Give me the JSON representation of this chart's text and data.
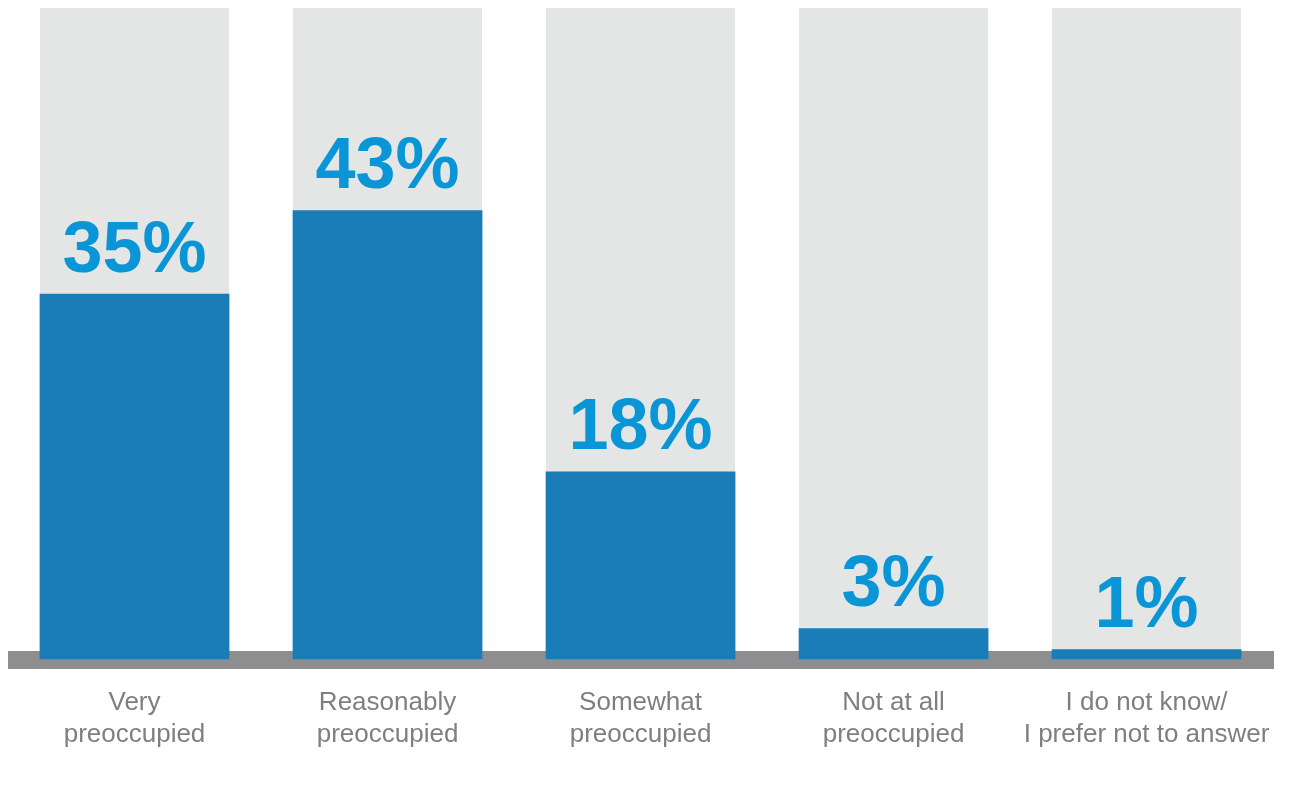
{
  "chart_data": {
    "type": "bar",
    "categories": [
      "Very\npreoccupied",
      "Reasonably\npreoccupied",
      "Somewhat\npreoccupied",
      "Not at all\npreoccupied",
      "I do not know/\nI prefer not to answer"
    ],
    "values": [
      35,
      43,
      18,
      3,
      1
    ],
    "color": "#1b7db8",
    "tick_labels": "x",
    "data_labels": true,
    "value_labels": [
      "35%",
      "43%",
      "18%",
      "3%",
      "1%"
    ],
    "grid": false,
    "legend": false
  }
}
